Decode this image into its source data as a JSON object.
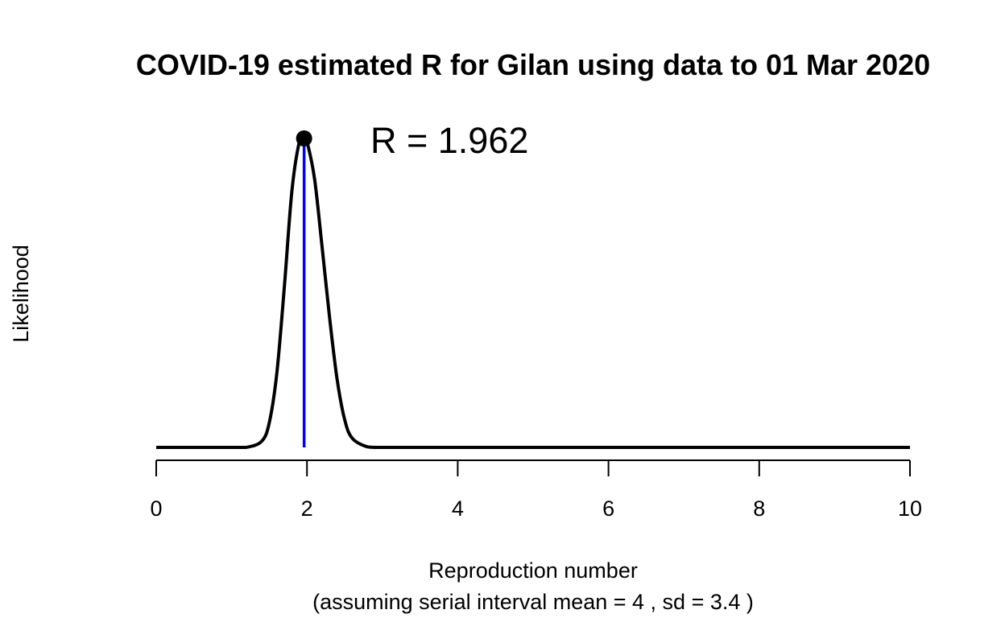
{
  "chart_data": {
    "type": "line",
    "title": "COVID-19 estimated R for Gilan using data to 01 Mar 2020",
    "xlabel": "Reproduction number",
    "xlabel_sub": "(assuming serial interval mean = 4 , sd = 3.4 )",
    "ylabel": "Likelihood",
    "xlim": [
      0,
      10
    ],
    "x_ticks": [
      0,
      2,
      4,
      6,
      8,
      10
    ],
    "x_tick_labels": [
      "0",
      "2",
      "4",
      "6",
      "8",
      "10"
    ],
    "y_axis_shown": false,
    "grid": false,
    "series": [
      {
        "color": "#000000",
        "x": [
          0,
          1.0,
          1.2,
          1.4,
          1.5,
          1.6,
          1.7,
          1.8,
          1.9,
          1.962,
          2.0,
          2.1,
          2.2,
          2.3,
          2.4,
          2.5,
          2.6,
          2.8,
          3.0,
          4.0,
          6.0,
          8.0,
          10.0
        ],
        "y": [
          0,
          0.0,
          0.0003,
          0.02,
          0.08,
          0.24,
          0.52,
          0.83,
          0.99,
          1.0,
          0.99,
          0.87,
          0.65,
          0.42,
          0.22,
          0.09,
          0.03,
          0.002,
          0.0,
          0.0,
          0.0,
          0.0,
          0.0
        ]
      }
    ],
    "peak": {
      "x": 1.962,
      "y": 1.0,
      "label": "R = 1.962",
      "line_color": "#0000ff",
      "point_color": "#000000"
    }
  }
}
